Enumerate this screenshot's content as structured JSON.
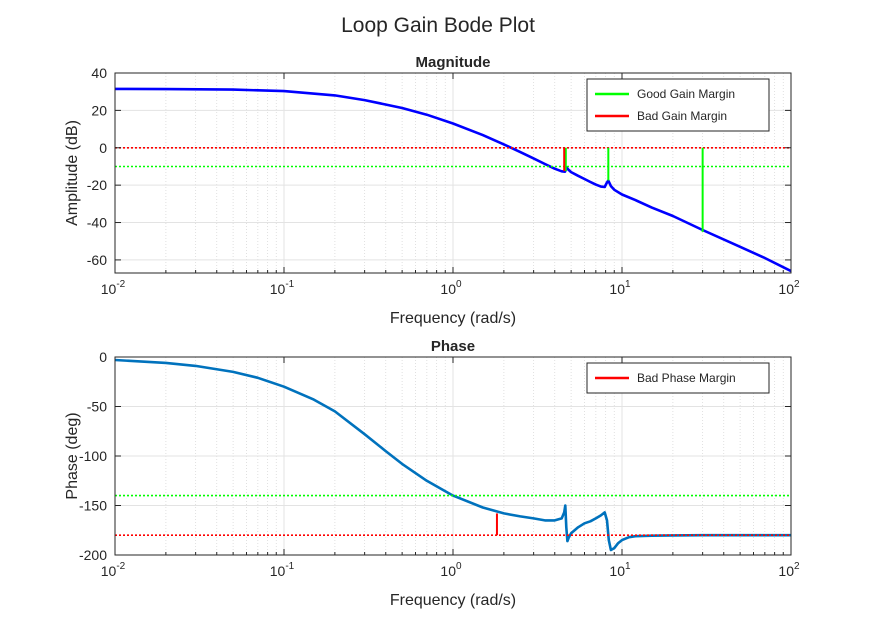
{
  "figure": {
    "title": "Loop Gain Bode Plot"
  },
  "chart_data": [
    {
      "type": "line",
      "title": "Magnitude",
      "xlabel": "Frequency (rad/s)",
      "ylabel": "Amplitude (dB)",
      "xscale": "log",
      "xlim": [
        0.01,
        100
      ],
      "ylim": [
        -67,
        40
      ],
      "yticks": [
        40,
        20,
        0,
        -20,
        -40,
        -60
      ],
      "yticklabels": [
        "40",
        "20",
        "0",
        "-20",
        "-40",
        "-60"
      ],
      "xticks": [
        0.01,
        0.1,
        1,
        10,
        100
      ],
      "xticklabels": [
        [
          "10",
          "-2"
        ],
        [
          "10",
          "-1"
        ],
        [
          "10",
          "0"
        ],
        [
          "10",
          "1"
        ],
        [
          "10",
          "2"
        ]
      ],
      "grid": true,
      "minor_grid": true,
      "legend_position": "top-right",
      "legend": [
        {
          "label": "Good Gain Margin",
          "color": "#00ff00"
        },
        {
          "label": "Bad Gain Margin",
          "color": "#ff0000"
        }
      ],
      "series": [
        {
          "color": "#0000ff",
          "x": [
            0.01,
            0.02,
            0.05,
            0.1,
            0.2,
            0.3,
            0.5,
            0.7,
            1.0,
            1.5,
            2.0,
            2.5,
            3.0,
            3.5,
            4.0,
            4.4,
            4.6,
            4.7,
            4.8,
            5.0,
            5.5,
            6.0,
            6.5,
            7.0,
            7.5,
            7.9,
            8.1,
            8.3,
            8.6,
            9.0,
            10,
            12,
            15,
            20,
            30,
            50,
            70,
            100
          ],
          "y": [
            31.5,
            31.4,
            31.1,
            30.3,
            28.0,
            25.5,
            21.3,
            17.7,
            13.0,
            6.8,
            1.8,
            -2.3,
            -5.7,
            -8.7,
            -11.2,
            -12.6,
            -12.8,
            -10.5,
            -11.6,
            -13.0,
            -15.0,
            -16.7,
            -18.3,
            -19.7,
            -20.8,
            -21.0,
            -19.0,
            -17.5,
            -20.5,
            -22.5,
            -25.0,
            -28.0,
            -32.0,
            -36.5,
            -44.0,
            -53.0,
            -59.0,
            -66.0
          ]
        },
        {
          "color": "#ff0000",
          "style": "dotted",
          "x": [
            0.01,
            100
          ],
          "y": [
            0,
            0
          ]
        },
        {
          "color": "#00ff00",
          "style": "dotted",
          "x": [
            0.01,
            100
          ],
          "y": [
            -10,
            -10
          ]
        }
      ],
      "markers": [
        {
          "color": "#00ff00",
          "x": 4.65,
          "y1": -12.5,
          "y2": 0
        },
        {
          "color": "#ff0000",
          "x": 4.55,
          "y1": -12.5,
          "y2": 0
        },
        {
          "color": "#00ff00",
          "x": 8.3,
          "y1": -17.5,
          "y2": 0
        },
        {
          "color": "#00ff00",
          "x": 30,
          "y1": -45,
          "y2": 0
        }
      ]
    },
    {
      "type": "line",
      "title": "Phase",
      "xlabel": "Frequency (rad/s)",
      "ylabel": "Phase (deg)",
      "xscale": "log",
      "xlim": [
        0.01,
        100
      ],
      "ylim": [
        -200,
        0
      ],
      "yticks": [
        0,
        -50,
        -100,
        -150,
        -200
      ],
      "yticklabels": [
        "0",
        "-50",
        "-100",
        "-150",
        "-200"
      ],
      "xticks": [
        0.01,
        0.1,
        1,
        10,
        100
      ],
      "xticklabels": [
        [
          "10",
          "-2"
        ],
        [
          "10",
          "-1"
        ],
        [
          "10",
          "0"
        ],
        [
          "10",
          "1"
        ],
        [
          "10",
          "2"
        ]
      ],
      "grid": true,
      "minor_grid": true,
      "legend_position": "top-right",
      "legend": [
        {
          "label": "Bad Phase Margin",
          "color": "#ff0000"
        }
      ],
      "series": [
        {
          "color": "#0072bd",
          "x": [
            0.01,
            0.02,
            0.03,
            0.05,
            0.07,
            0.1,
            0.15,
            0.2,
            0.3,
            0.4,
            0.5,
            0.7,
            1.0,
            1.5,
            2.0,
            2.5,
            3.0,
            3.5,
            4.0,
            4.4,
            4.55,
            4.62,
            4.68,
            4.75,
            4.85,
            5.0,
            5.5,
            6.0,
            6.5,
            7.0,
            7.5,
            7.9,
            8.15,
            8.35,
            8.6,
            9.0,
            9.5,
            10,
            11,
            12,
            15,
            20,
            30,
            50,
            100
          ],
          "y": [
            -3,
            -6,
            -9,
            -15,
            -21,
            -30,
            -43,
            -55,
            -78,
            -95,
            -108,
            -125,
            -140,
            -152,
            -158,
            -161,
            -163,
            -165,
            -165,
            -163,
            -157,
            -150,
            -172,
            -186,
            -182,
            -178,
            -172,
            -168,
            -166,
            -163,
            -160,
            -157,
            -165,
            -185,
            -195,
            -193,
            -188,
            -185,
            -182,
            -181,
            -180.5,
            -180.2,
            -180,
            -180,
            -180
          ]
        },
        {
          "color": "#ff0000",
          "style": "dotted",
          "x": [
            0.01,
            100
          ],
          "y": [
            -180,
            -180
          ]
        },
        {
          "color": "#00ff00",
          "style": "dotted",
          "x": [
            0.01,
            100
          ],
          "y": [
            -140,
            -140
          ]
        }
      ],
      "markers": [
        {
          "color": "#ff0000",
          "x": 1.82,
          "y1": -180,
          "y2": -158
        }
      ]
    }
  ]
}
